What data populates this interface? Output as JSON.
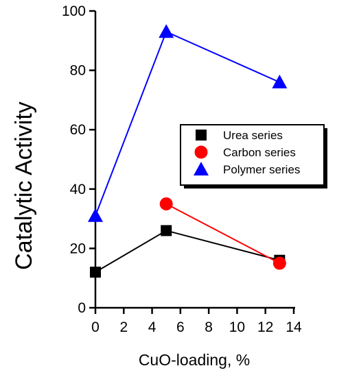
{
  "chart_data": {
    "type": "line",
    "xlabel": "CuO-loading, %",
    "ylabel": "Catalytic Activity",
    "xlim": [
      0,
      14
    ],
    "ylim": [
      0,
      100
    ],
    "xticks": [
      "0",
      "2",
      "4",
      "6",
      "8",
      "10",
      "12",
      "14"
    ],
    "yticks": [
      "0",
      "20",
      "40",
      "60",
      "80",
      "100"
    ],
    "grid": false,
    "legend_position": "right",
    "series": [
      {
        "name": "Urea series",
        "marker": "square",
        "color": "#000000",
        "line_color": "#000000",
        "points": [
          {
            "x": 0,
            "y": 12
          },
          {
            "x": 5,
            "y": 26
          },
          {
            "x": 13,
            "y": 16
          }
        ]
      },
      {
        "name": "Carbon series",
        "marker": "circle",
        "color": "#ff0000",
        "line_color": "#ff0000",
        "points": [
          {
            "x": 5,
            "y": 35
          },
          {
            "x": 13,
            "y": 15
          }
        ]
      },
      {
        "name": "Polymer series",
        "marker": "triangle",
        "color": "#0000ff",
        "line_color": "#0000ff",
        "points": [
          {
            "x": 0,
            "y": 31
          },
          {
            "x": 5,
            "y": 93
          },
          {
            "x": 13,
            "y": 76
          }
        ]
      }
    ]
  }
}
